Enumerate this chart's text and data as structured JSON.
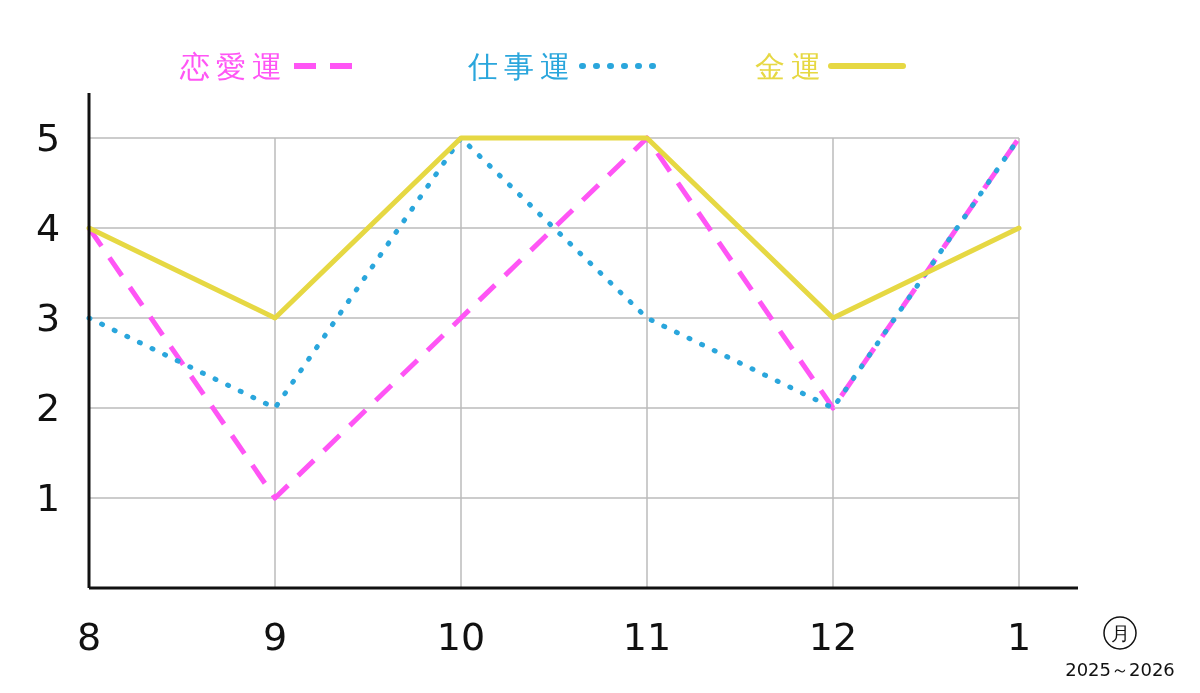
{
  "chart_data": {
    "type": "line",
    "categories": [
      "8",
      "9",
      "10",
      "11",
      "12",
      "1"
    ],
    "series": [
      {
        "name": "恋愛運",
        "color": "#ff55f5",
        "line_style": "dashed",
        "values": [
          4,
          1,
          3,
          5,
          2,
          5
        ]
      },
      {
        "name": "仕事運",
        "color": "#2aa6dc",
        "line_style": "dotted",
        "values": [
          3,
          2,
          5,
          3,
          2,
          5
        ]
      },
      {
        "name": "金運",
        "color": "#e6d843",
        "line_style": "solid",
        "values": [
          4,
          3,
          5,
          5,
          3,
          4
        ]
      }
    ],
    "ylim": [
      0,
      5.5
    ],
    "yticks": [
      1,
      2,
      3,
      4,
      5
    ],
    "grid": true,
    "legend": "top",
    "xlabel": "月",
    "annotations": [
      "2025～2026"
    ]
  }
}
